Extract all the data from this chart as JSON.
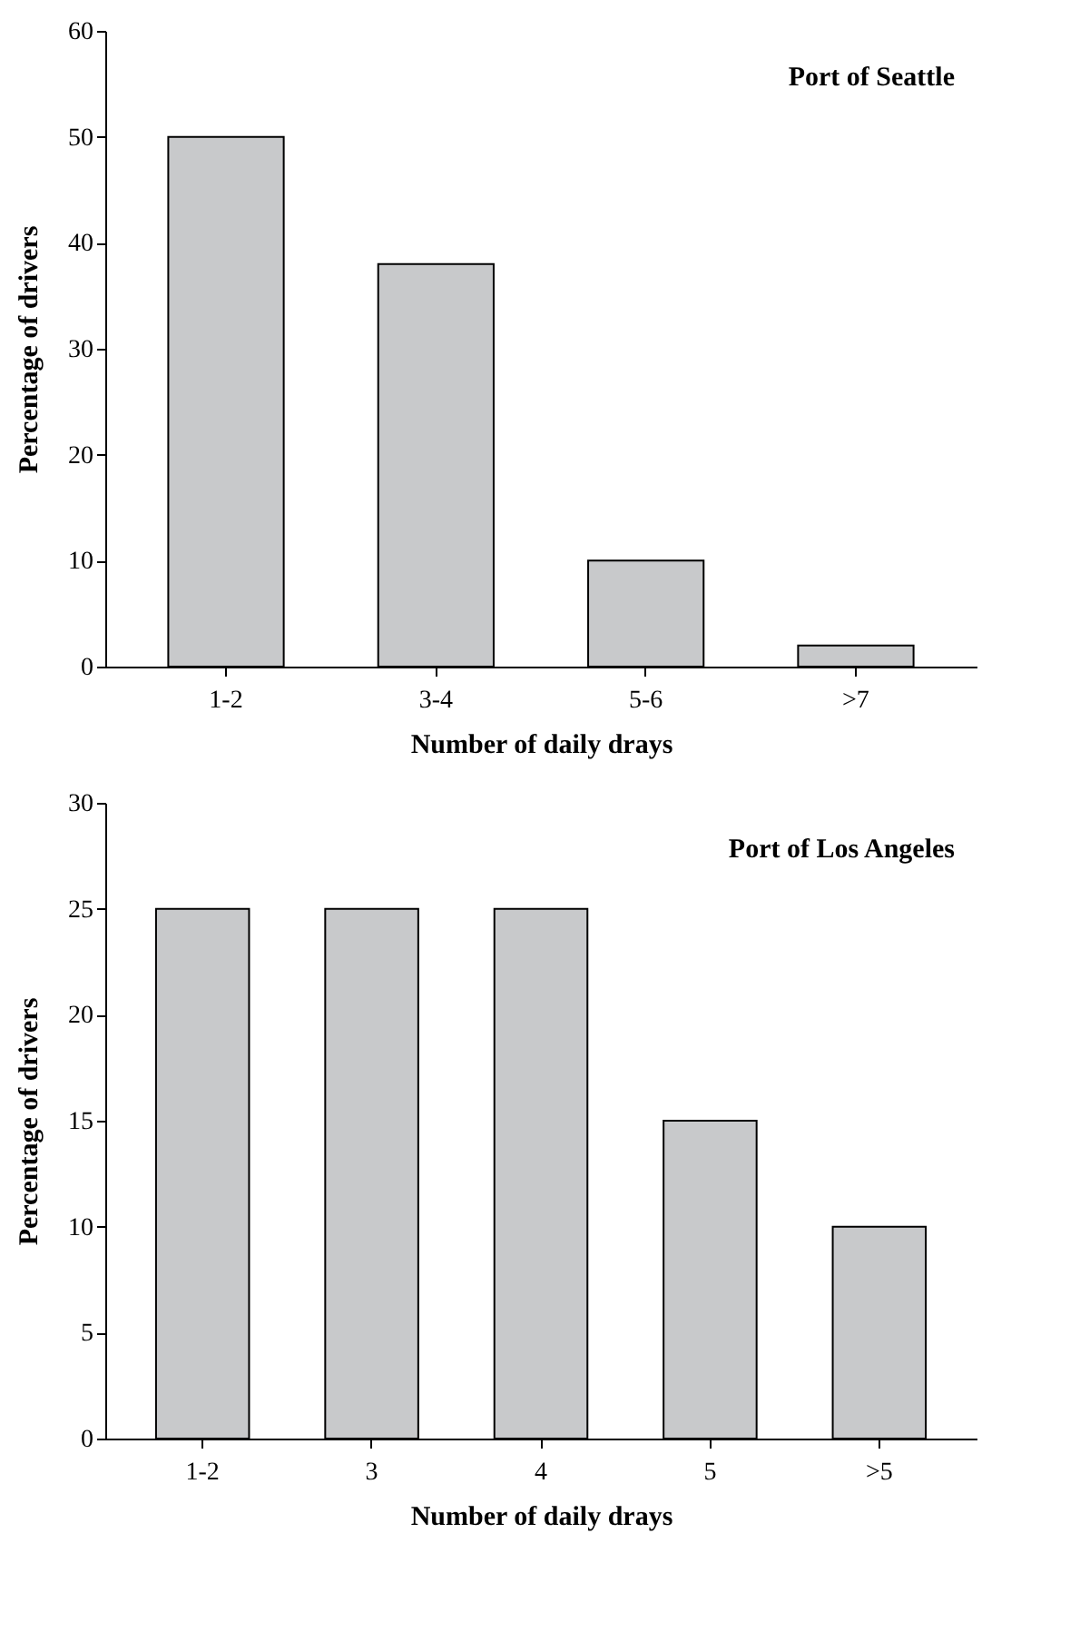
{
  "chart_data": [
    {
      "type": "bar",
      "title": "Port of Seattle",
      "xlabel": "Number of daily drays",
      "ylabel": "Percentage of drivers",
      "categories": [
        "1-2",
        "3-4",
        "5-6",
        ">7"
      ],
      "values": [
        50,
        38,
        10,
        2
      ],
      "color": "#c8c9cb",
      "ylim": [
        0,
        60
      ],
      "yticks": [
        0,
        10,
        20,
        30,
        40,
        50,
        60
      ],
      "grid": false
    },
    {
      "type": "bar",
      "title": "Port of Los Angeles",
      "xlabel": "Number of daily drays",
      "ylabel": "Percentage of drivers",
      "categories": [
        "1-2",
        "3",
        "4",
        "5",
        ">5"
      ],
      "values": [
        25,
        25,
        25,
        15,
        10
      ],
      "color": "#c8c9cb",
      "ylim": [
        0,
        30
      ],
      "yticks": [
        0,
        5,
        10,
        15,
        20,
        25,
        30
      ],
      "grid": false
    }
  ]
}
